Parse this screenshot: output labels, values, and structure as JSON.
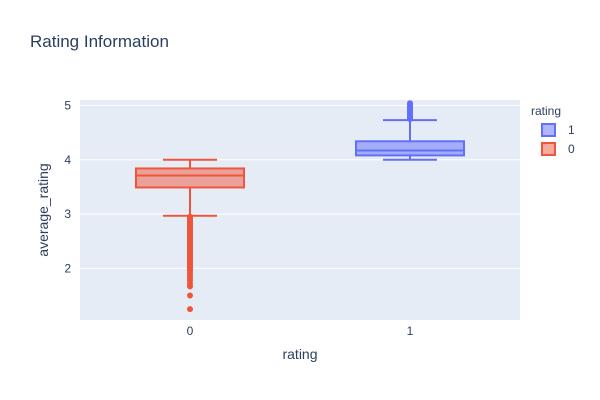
{
  "chart_data": {
    "type": "box",
    "title": "Rating Information",
    "xlabel": "rating",
    "ylabel": "average_rating",
    "categories": [
      "0",
      "1"
    ],
    "ylim": [
      1.05,
      5.1
    ],
    "yticks": [
      "2",
      "3",
      "4",
      "5"
    ],
    "grid": true,
    "legend": {
      "title": "rating",
      "placement": "top-right",
      "entries": [
        "1",
        "0"
      ]
    },
    "series": [
      {
        "name": "1",
        "category": "1",
        "color": "#636efa",
        "min": 4.0,
        "q1": 4.08,
        "median": 4.17,
        "q3": 4.34,
        "max": 4.73,
        "outliers": [
          4.75,
          4.76,
          4.78,
          4.8,
          4.82,
          4.85,
          4.88,
          4.9,
          4.92,
          4.95,
          4.97,
          5.0,
          5.02,
          5.04
        ]
      },
      {
        "name": "0",
        "category": "0",
        "color": "#ef553b",
        "min": 2.97,
        "q1": 3.49,
        "median": 3.71,
        "q3": 3.84,
        "max": 4.0,
        "outliers": [
          2.95,
          2.92,
          2.9,
          2.87,
          2.85,
          2.82,
          2.8,
          2.77,
          2.75,
          2.72,
          2.7,
          2.67,
          2.65,
          2.62,
          2.6,
          2.57,
          2.55,
          2.52,
          2.5,
          2.47,
          2.45,
          2.42,
          2.4,
          2.37,
          2.35,
          2.32,
          2.3,
          2.27,
          2.25,
          2.22,
          2.2,
          2.17,
          2.15,
          2.12,
          2.1,
          2.07,
          2.05,
          2.02,
          2.0,
          1.97,
          1.93,
          1.88,
          1.83,
          1.78,
          1.72,
          1.67,
          1.5,
          1.25
        ]
      }
    ]
  }
}
